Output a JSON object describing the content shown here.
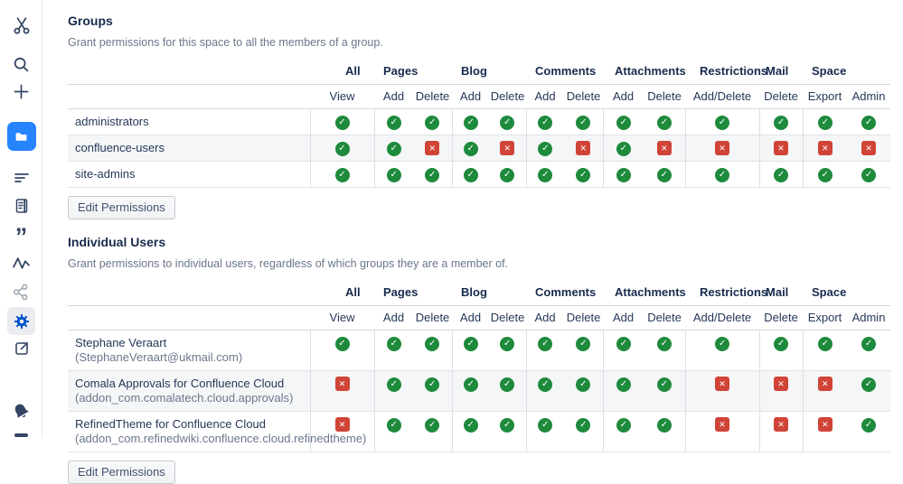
{
  "sidebar": {
    "items": [
      {
        "icon": "scissors-logo",
        "state": "normal"
      },
      {
        "icon": "search",
        "state": "normal"
      },
      {
        "icon": "create-plus",
        "state": "normal"
      },
      {
        "icon": "folder-spaces",
        "state": "active"
      },
      {
        "icon": "content-lines",
        "state": "normal"
      },
      {
        "icon": "journal",
        "state": "normal"
      },
      {
        "icon": "quotes",
        "state": "normal"
      },
      {
        "icon": "activity",
        "state": "normal"
      },
      {
        "icon": "share",
        "state": "disabled"
      },
      {
        "icon": "settings-gear",
        "state": "selected"
      },
      {
        "icon": "external-link",
        "state": "normal"
      },
      {
        "icon": "notifications-bell",
        "state": "normal"
      }
    ],
    "quote_glyph": "”"
  },
  "table_header": {
    "group_labels": [
      "All",
      "Pages",
      "Blog",
      "Comments",
      "Attachments",
      "Restrictions",
      "Mail",
      "Space"
    ],
    "sub_labels": [
      "View",
      "Add",
      "Delete",
      "Add",
      "Delete",
      "Add",
      "Delete",
      "Add",
      "Delete",
      "Add/Delete",
      "Delete",
      "Export",
      "Admin"
    ]
  },
  "groups_section": {
    "title": "Groups",
    "description": "Grant permissions for this space to all the members of a group.",
    "edit_button_label": "Edit Permissions",
    "rows": [
      {
        "name": "administrators",
        "perms": [
          "yes",
          "yes",
          "yes",
          "yes",
          "yes",
          "yes",
          "yes",
          "yes",
          "yes",
          "yes",
          "yes",
          "yes",
          "yes"
        ]
      },
      {
        "name": "confluence-users",
        "perms": [
          "yes",
          "yes",
          "no",
          "yes",
          "no",
          "yes",
          "no",
          "yes",
          "no",
          "no",
          "no",
          "no",
          "no"
        ]
      },
      {
        "name": "site-admins",
        "perms": [
          "yes",
          "yes",
          "yes",
          "yes",
          "yes",
          "yes",
          "yes",
          "yes",
          "yes",
          "yes",
          "yes",
          "yes",
          "yes"
        ]
      }
    ]
  },
  "users_section": {
    "title": "Individual Users",
    "description": "Grant permissions to individual users, regardless of which groups they are a member of.",
    "edit_button_label": "Edit Permissions",
    "rows": [
      {
        "name": "Stephane Veraart",
        "detail": "(StephaneVeraart@ukmail.com)",
        "detail_inline": true,
        "perms": [
          "yes",
          "yes",
          "yes",
          "yes",
          "yes",
          "yes",
          "yes",
          "yes",
          "yes",
          "yes",
          "yes",
          "yes",
          "yes"
        ]
      },
      {
        "name": "Comala Approvals for Confluence Cloud",
        "detail": "(addon_com.comalatech.cloud.approvals)",
        "detail_inline": false,
        "perms": [
          "no",
          "yes",
          "yes",
          "yes",
          "yes",
          "yes",
          "yes",
          "yes",
          "yes",
          "no",
          "no",
          "no",
          "yes"
        ]
      },
      {
        "name": "RefinedTheme for Confluence Cloud",
        "detail": "(addon_com.refinedwiki.confluence.cloud.refinedtheme)",
        "detail_inline": false,
        "perms": [
          "no",
          "yes",
          "yes",
          "yes",
          "yes",
          "yes",
          "yes",
          "yes",
          "yes",
          "no",
          "no",
          "no",
          "yes"
        ]
      }
    ]
  },
  "icons": {
    "permission_granted_glyph": "✓",
    "permission_denied_glyph": "✕"
  },
  "colors": {
    "permission_granted": "#1e8a3c",
    "permission_denied": "#d04437",
    "active_tile": "#2684ff",
    "selected_gear": "#0052cc",
    "sidebar_icon": "#344563"
  }
}
